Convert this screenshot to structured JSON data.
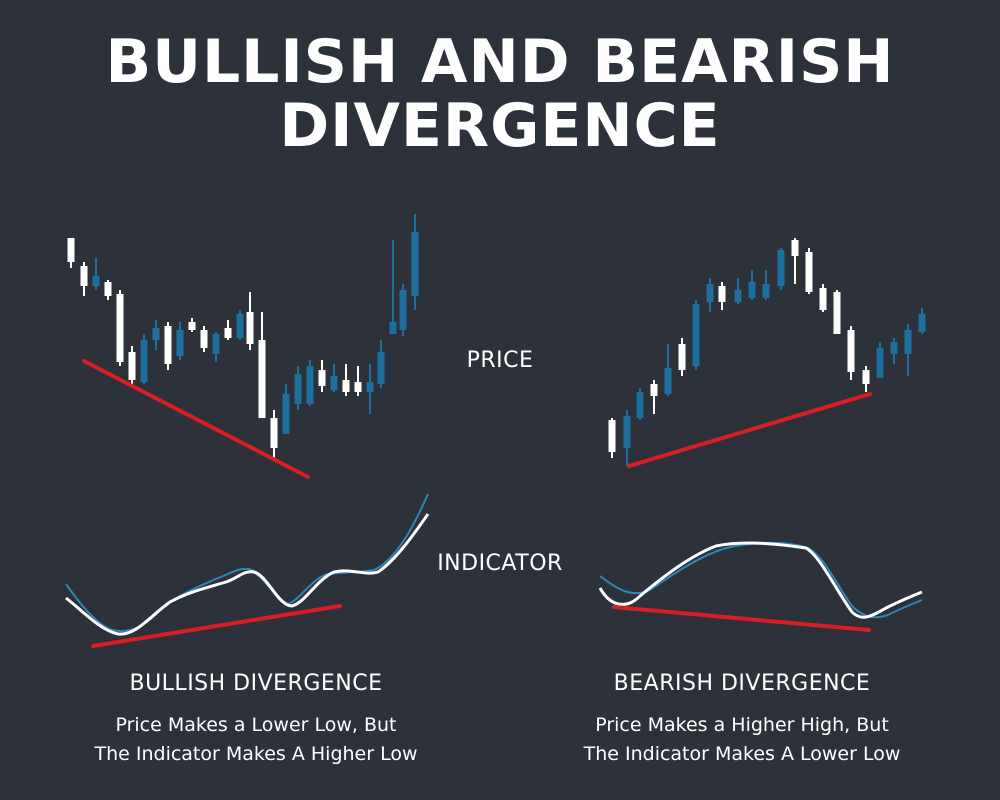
{
  "title": {
    "line1": "BULLISH AND BEARISH",
    "line2": "DIVERGENCE"
  },
  "labels": {
    "price": "PRICE",
    "indicator": "INDICATOR"
  },
  "bullish": {
    "heading": "BULLISH DIVERGENCE",
    "desc_line1": "Price Makes a Lower Low, But",
    "desc_line2": "The Indicator Makes A Higher Low"
  },
  "bearish": {
    "heading": "BEARISH DIVERGENCE",
    "desc_line1": "Price Makes a Higher High, But",
    "desc_line2": "The Indicator Makes A Lower Low"
  },
  "colors": {
    "background": "#2d3139",
    "bull_candle": "#1f6f9e",
    "bear_candle": "#ffffff",
    "trendline": "#d91f26",
    "indicator_main": "#ffffff",
    "indicator_signal": "#2f86b8"
  }
}
